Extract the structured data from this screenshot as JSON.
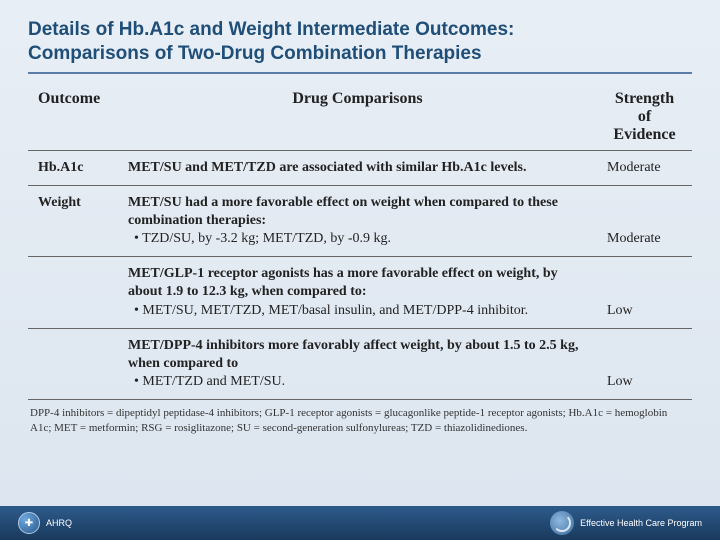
{
  "title_line1": "Details of Hb.A1c and Weight Intermediate Outcomes:",
  "title_line2": "Comparisons of Two-Drug Combination Therapies",
  "table": {
    "headers": {
      "outcome": "Outcome",
      "drug": "Drug Comparisons",
      "strength": "Strength of Evidence"
    },
    "rows": [
      {
        "outcome": "Hb.A1c",
        "drug_html": "<b>MET/SU and MET/TZD are associated with similar Hb.A1c levels.</b>",
        "strength": "Moderate"
      },
      {
        "outcome": "Weight",
        "drug_html": "<b>MET/SU had a more favorable effect on weight when compared to these combination therapies:</b><div class='sub-bullet'>• TZD/SU, by -3.2 kg; MET/TZD, by -0.9 kg.</div>",
        "strength": "Moderate"
      },
      {
        "outcome": "",
        "drug_html": "<b>MET/GLP-1 receptor agonists has a more favorable effect on weight, by about 1.9 to 12.3 kg, when compared to:</b><div class='sub-bullet'>• MET/SU, MET/TZD, MET/basal insulin, and MET/DPP-4 inhibitor.</div>",
        "strength": "Low"
      },
      {
        "outcome": "",
        "drug_html": "<b>MET/DPP-4 inhibitors more favorably affect weight, by about 1.5 to 2.5 kg, when compared to</b><div class='sub-bullet'>• MET/TZD and MET/SU.</div>",
        "strength": "Low"
      }
    ]
  },
  "footnote": "DPP-4 inhibitors = dipeptidyl peptidase-4 inhibitors; GLP-1 receptor agonists = glucagonlike peptide-1 receptor agonists; Hb.A1c = hemoglobin A1c; MET = metformin; RSG = rosiglitazone; SU = second-generation sulfonylureas; TZD = thiazolidinediones.",
  "footer": {
    "left_org": "AHRQ",
    "right_org": "Effective Health Care Program"
  },
  "colors": {
    "title": "#1f4e79",
    "underline": "#5b7ca8",
    "footer_grad_top": "#2d5a8c",
    "footer_grad_bottom": "#1a3a5c"
  }
}
